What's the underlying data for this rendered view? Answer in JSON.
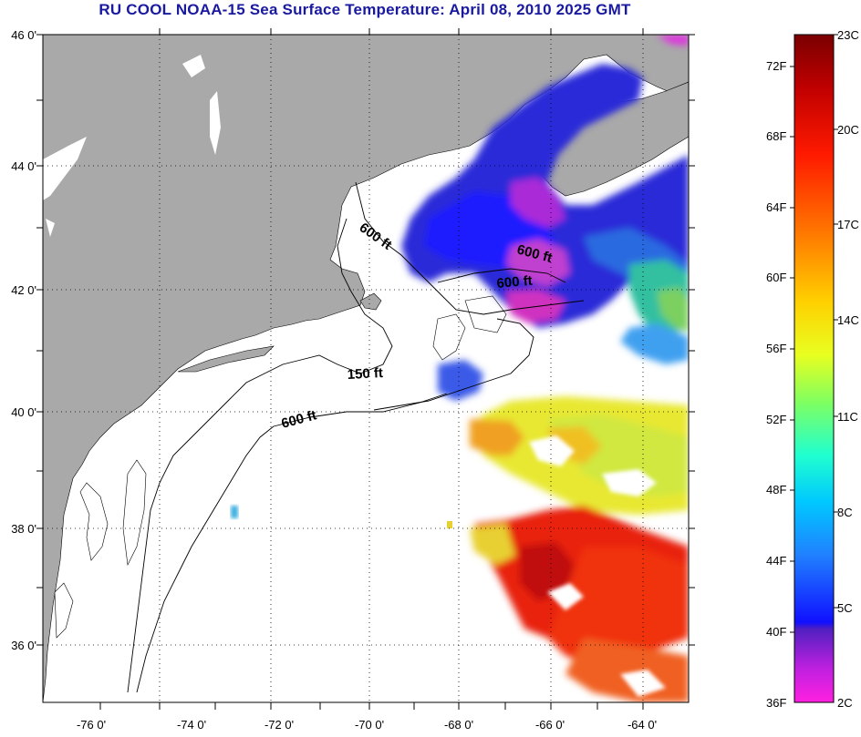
{
  "title": "RU COOL  NOAA-15  Sea Surface Temperature:  April 08, 2010 2025 GMT",
  "map": {
    "lat_labels": [
      "46 0'",
      "44 0'",
      "42 0'",
      "40 0'",
      "38 0'",
      "36 0'"
    ],
    "lon_labels": [
      "-76 0'",
      "-74 0'",
      "-72 0'",
      "-70 0'",
      "-68 0'",
      "-66 0'",
      "-64 0'"
    ],
    "contour_labels": [
      "600 ft",
      "600 ft",
      "600 ft",
      "150 ft",
      "600 ft"
    ],
    "colors": {
      "land": "#a9a9a9",
      "ocean_cloud": "#ffffff",
      "title": "#1a1aa0"
    }
  },
  "colorbar": {
    "fahrenheit_labels": [
      "72F",
      "68F",
      "64F",
      "60F",
      "56F",
      "52F",
      "48F",
      "44F",
      "40F",
      "36F"
    ],
    "celsius_labels": [
      "23C",
      "20C",
      "17C",
      "14C",
      "11C",
      "8C",
      "5C",
      "2C"
    ]
  }
}
